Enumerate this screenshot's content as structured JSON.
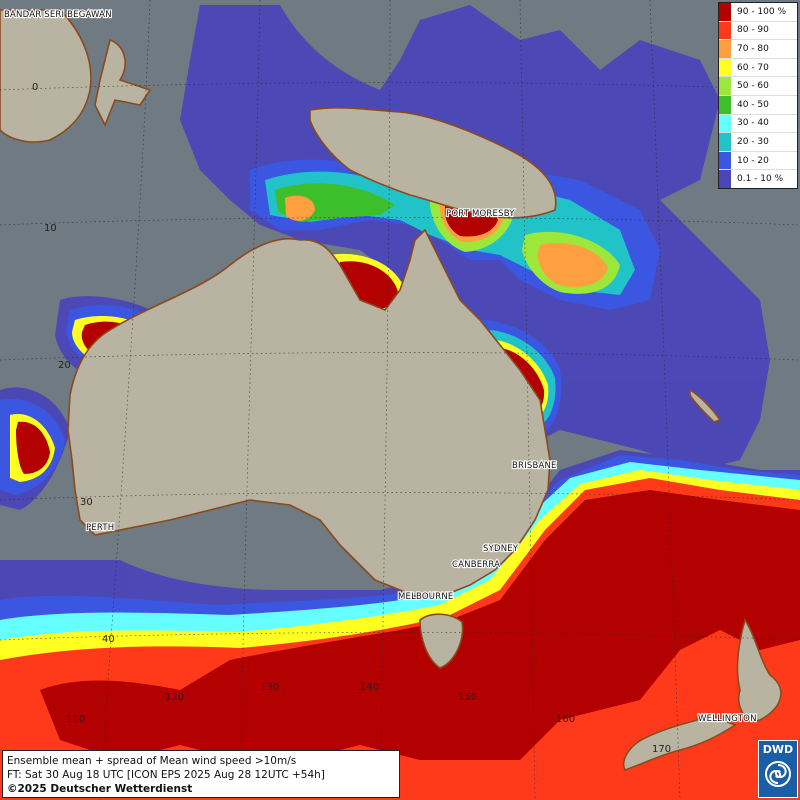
{
  "legend": {
    "items": [
      {
        "label": "90 - 100 %",
        "color": "#b30000"
      },
      {
        "label": "80 - 90",
        "color": "#ff3a1a"
      },
      {
        "label": "70 - 80",
        "color": "#ffa040"
      },
      {
        "label": "60 - 70",
        "color": "#ffff22"
      },
      {
        "label": "50 - 60",
        "color": "#9be83a"
      },
      {
        "label": "40 - 50",
        "color": "#3cbf2a"
      },
      {
        "label": "30 - 40",
        "color": "#66ffff"
      },
      {
        "label": "20 - 30",
        "color": "#22c3c8"
      },
      {
        "label": "10 - 20",
        "color": "#3b56e0"
      },
      {
        "label": "0.1 - 10 %",
        "color": "#4a46b8"
      }
    ]
  },
  "places": {
    "bandar": "BANDAR SERI BEGAWAN",
    "port_moresby": "PORT MORESBY",
    "brisbane": "BRISBANE",
    "sydney": "SYDNEY",
    "canberra": "CANBERRA",
    "melbourne": "MELBOURNE",
    "perth": "PERTH",
    "wellington": "WELLINGTON"
  },
  "grid_labels": {
    "lat_0": "0",
    "lat_10": "10",
    "lat_20": "20",
    "lat_30": "30",
    "lat_40": "40",
    "lon_110": "110",
    "lon_120": "120",
    "lon_130": "130",
    "lon_140": "140",
    "lon_150": "150",
    "lon_160": "160",
    "lon_170": "170"
  },
  "caption": {
    "line1": "Ensemble mean + spread of Mean wind speed >10m/s",
    "line2": "FT: Sat 30 Aug 18 UTC [ICON EPS 2025 Aug 28 12UTC +54h]",
    "copyright": "©2025 Deutscher Wetterdienst"
  },
  "logo": {
    "text": "DWD"
  },
  "colors": {
    "ocean": "#6f7a82",
    "land": "#b9b4a2",
    "coast": "#8a4a1c"
  }
}
